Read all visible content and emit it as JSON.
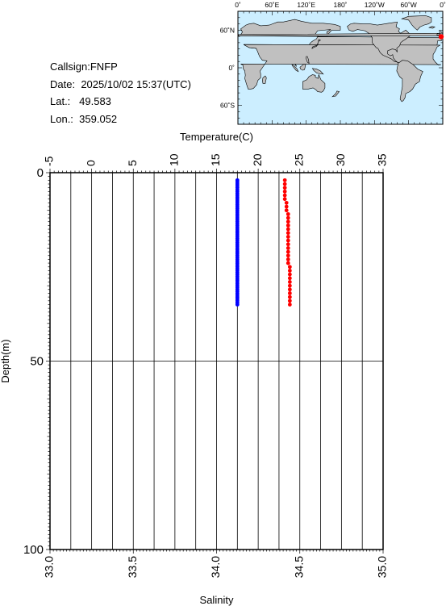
{
  "info": {
    "callsign_label": "Callsign:",
    "callsign": "FNFP",
    "date_label": "Date:",
    "date": "2025/10/02 15:37(UTC)",
    "lat_label": "Lat.:",
    "lat": "49.583",
    "lon_label": "Lon.:",
    "lon": "359.052"
  },
  "map": {
    "lon_ticks": [
      "0˚",
      "60˚E",
      "120˚E",
      "180˚",
      "120˚W",
      "60˚W",
      "0˚"
    ],
    "lat_ticks": [
      "60˚N",
      "0˚",
      "60˚S"
    ],
    "ocean_color": "#cceeff",
    "land_color": "#c0c0c0",
    "marker_color": "#ff0000",
    "station": {
      "lat": 49.583,
      "lon": 359.052
    }
  },
  "chart_data": {
    "type": "scatter",
    "top_axis": {
      "label": "Temperature(C)",
      "range": [
        -5,
        35
      ],
      "ticks": [
        -5,
        0,
        5,
        10,
        15,
        20,
        25,
        30,
        35
      ]
    },
    "bottom_axis": {
      "label": "Salinity",
      "range": [
        33.0,
        35.0
      ],
      "ticks": [
        "33.0",
        "33.5",
        "34.0",
        "34.5",
        "35.0"
      ]
    },
    "y_axis": {
      "label": "Depth(m)",
      "range": [
        0,
        100
      ],
      "inverted": true,
      "ticks": [
        0,
        50,
        100
      ]
    },
    "grid": true,
    "series": [
      {
        "color": "#0000ff",
        "axis": "temperature",
        "points": [
          [
            17.5,
            2
          ],
          [
            17.5,
            2.5
          ],
          [
            17.5,
            3
          ],
          [
            17.5,
            3.5
          ],
          [
            17.5,
            4
          ],
          [
            17.5,
            4.5
          ],
          [
            17.5,
            5
          ],
          [
            17.5,
            5.5
          ],
          [
            17.5,
            6
          ],
          [
            17.5,
            6.5
          ],
          [
            17.5,
            7
          ],
          [
            17.5,
            7.5
          ],
          [
            17.5,
            8
          ],
          [
            17.5,
            8.5
          ],
          [
            17.5,
            9
          ],
          [
            17.5,
            9.5
          ],
          [
            17.5,
            10
          ],
          [
            17.5,
            10.5
          ],
          [
            17.5,
            11
          ],
          [
            17.5,
            11.5
          ],
          [
            17.5,
            12
          ],
          [
            17.5,
            12.5
          ],
          [
            17.5,
            13
          ],
          [
            17.5,
            13.5
          ],
          [
            17.5,
            14
          ],
          [
            17.5,
            14.5
          ],
          [
            17.5,
            15
          ],
          [
            17.5,
            15.5
          ],
          [
            17.5,
            16
          ],
          [
            17.5,
            16.5
          ],
          [
            17.5,
            17
          ],
          [
            17.5,
            17.5
          ],
          [
            17.5,
            18
          ],
          [
            17.5,
            18.5
          ],
          [
            17.5,
            19
          ],
          [
            17.5,
            19.5
          ],
          [
            17.5,
            20
          ],
          [
            17.5,
            20.5
          ],
          [
            17.5,
            21
          ],
          [
            17.5,
            21.5
          ],
          [
            17.5,
            22
          ],
          [
            17.5,
            22.5
          ],
          [
            17.5,
            23
          ],
          [
            17.5,
            23.5
          ],
          [
            17.5,
            24
          ],
          [
            17.5,
            24.5
          ],
          [
            17.5,
            25
          ],
          [
            17.5,
            25.5
          ],
          [
            17.5,
            26
          ],
          [
            17.5,
            26.5
          ],
          [
            17.5,
            27
          ],
          [
            17.5,
            27.5
          ],
          [
            17.5,
            28
          ],
          [
            17.5,
            28.5
          ],
          [
            17.5,
            29
          ],
          [
            17.5,
            29.5
          ],
          [
            17.5,
            30
          ],
          [
            17.5,
            30.5
          ],
          [
            17.5,
            31
          ],
          [
            17.5,
            31.5
          ],
          [
            17.5,
            32
          ],
          [
            17.5,
            32.5
          ],
          [
            17.5,
            33
          ],
          [
            17.5,
            33.5
          ],
          [
            17.5,
            34
          ],
          [
            17.5,
            34.5
          ],
          [
            17.5,
            35
          ]
        ]
      },
      {
        "color": "#ff0000",
        "axis": "salinity",
        "points": [
          [
            34.41,
            2
          ],
          [
            34.41,
            3
          ],
          [
            34.41,
            4
          ],
          [
            34.41,
            5
          ],
          [
            34.41,
            6
          ],
          [
            34.41,
            7
          ],
          [
            34.42,
            8
          ],
          [
            34.42,
            9
          ],
          [
            34.42,
            10
          ],
          [
            34.43,
            11
          ],
          [
            34.43,
            12
          ],
          [
            34.43,
            13
          ],
          [
            34.43,
            14
          ],
          [
            34.43,
            15
          ],
          [
            34.43,
            16
          ],
          [
            34.43,
            17
          ],
          [
            34.43,
            18
          ],
          [
            34.43,
            19
          ],
          [
            34.43,
            20
          ],
          [
            34.43,
            21
          ],
          [
            34.43,
            22
          ],
          [
            34.43,
            23
          ],
          [
            34.43,
            24
          ],
          [
            34.44,
            25
          ],
          [
            34.44,
            26
          ],
          [
            34.44,
            27
          ],
          [
            34.44,
            28
          ],
          [
            34.44,
            29
          ],
          [
            34.44,
            30
          ],
          [
            34.44,
            31
          ],
          [
            34.44,
            32
          ],
          [
            34.44,
            33
          ],
          [
            34.44,
            34
          ],
          [
            34.44,
            35
          ]
        ]
      }
    ]
  }
}
